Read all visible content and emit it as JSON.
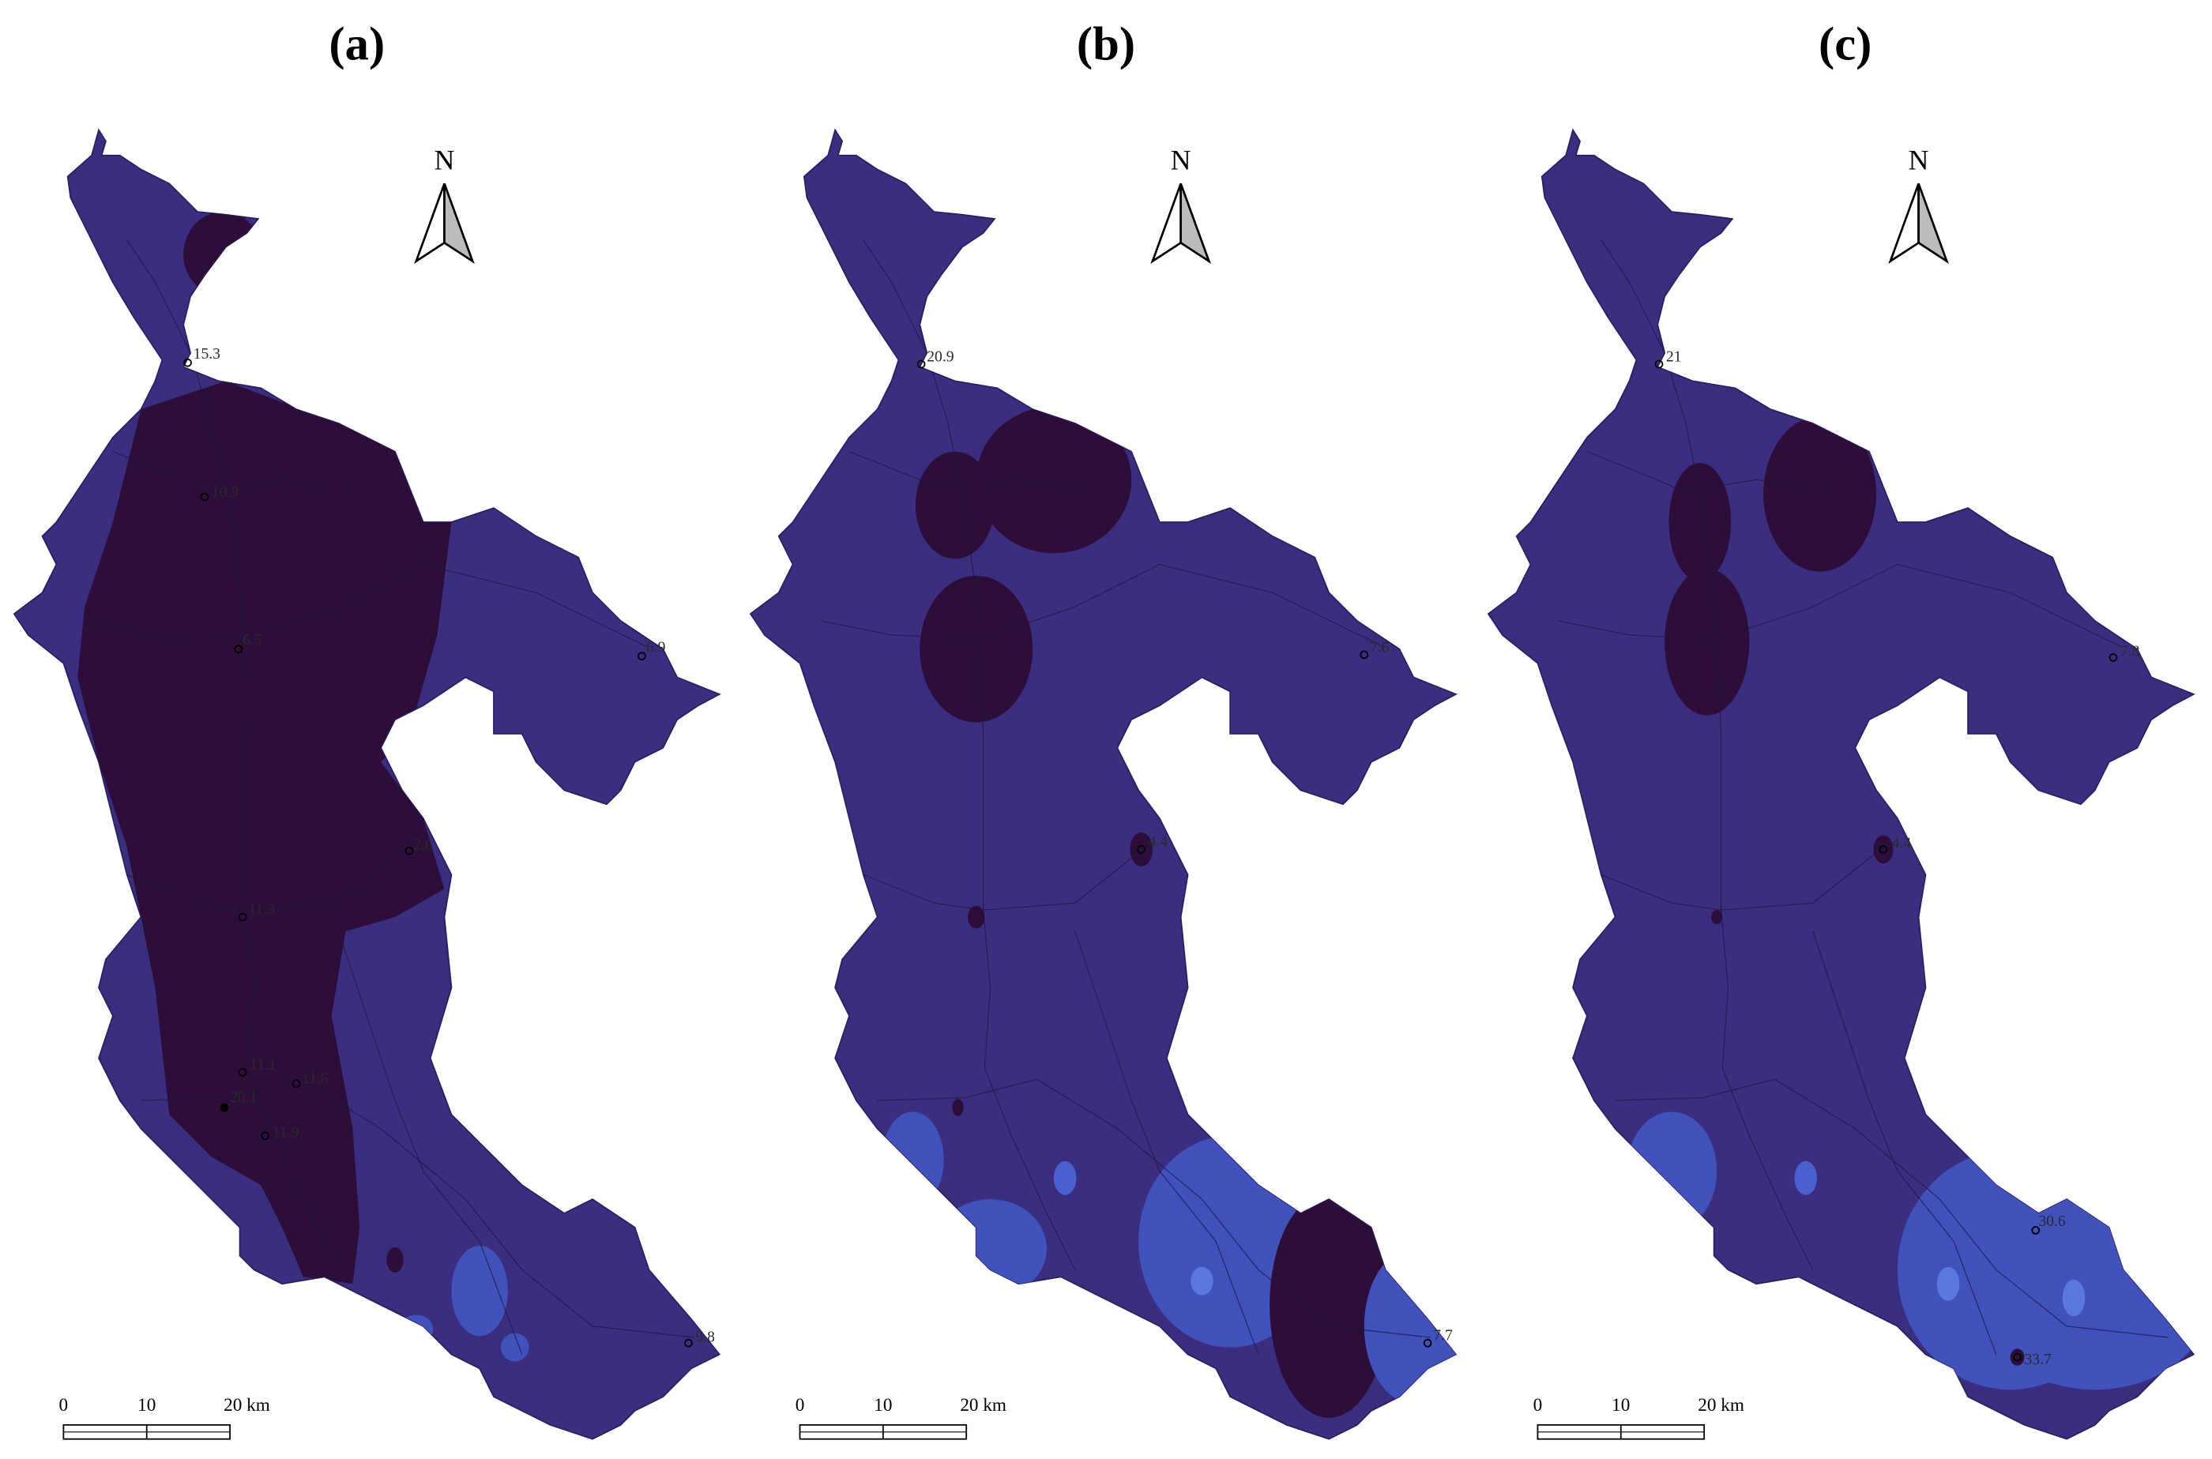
{
  "panels": [
    {
      "label": "(a)",
      "north": "N",
      "scale": [
        "0",
        "10",
        "20 km"
      ],
      "stations": [
        "15.3",
        "10.9",
        "6.5",
        "6.9",
        "2.6",
        "11.3",
        "11.1",
        "20.1",
        "11.6",
        "11.9",
        "9.8"
      ]
    },
    {
      "label": "(b)",
      "north": "N",
      "scale": [
        "0",
        "10",
        "20 km"
      ],
      "stations": [
        "20.9",
        "7.6",
        "4.4",
        "7.7"
      ]
    },
    {
      "label": "(c)",
      "north": "N",
      "scale": [
        "0",
        "10",
        "20 km"
      ],
      "stations": [
        "21",
        "7.8",
        "4.4",
        "30.6",
        "33.7"
      ]
    }
  ]
}
